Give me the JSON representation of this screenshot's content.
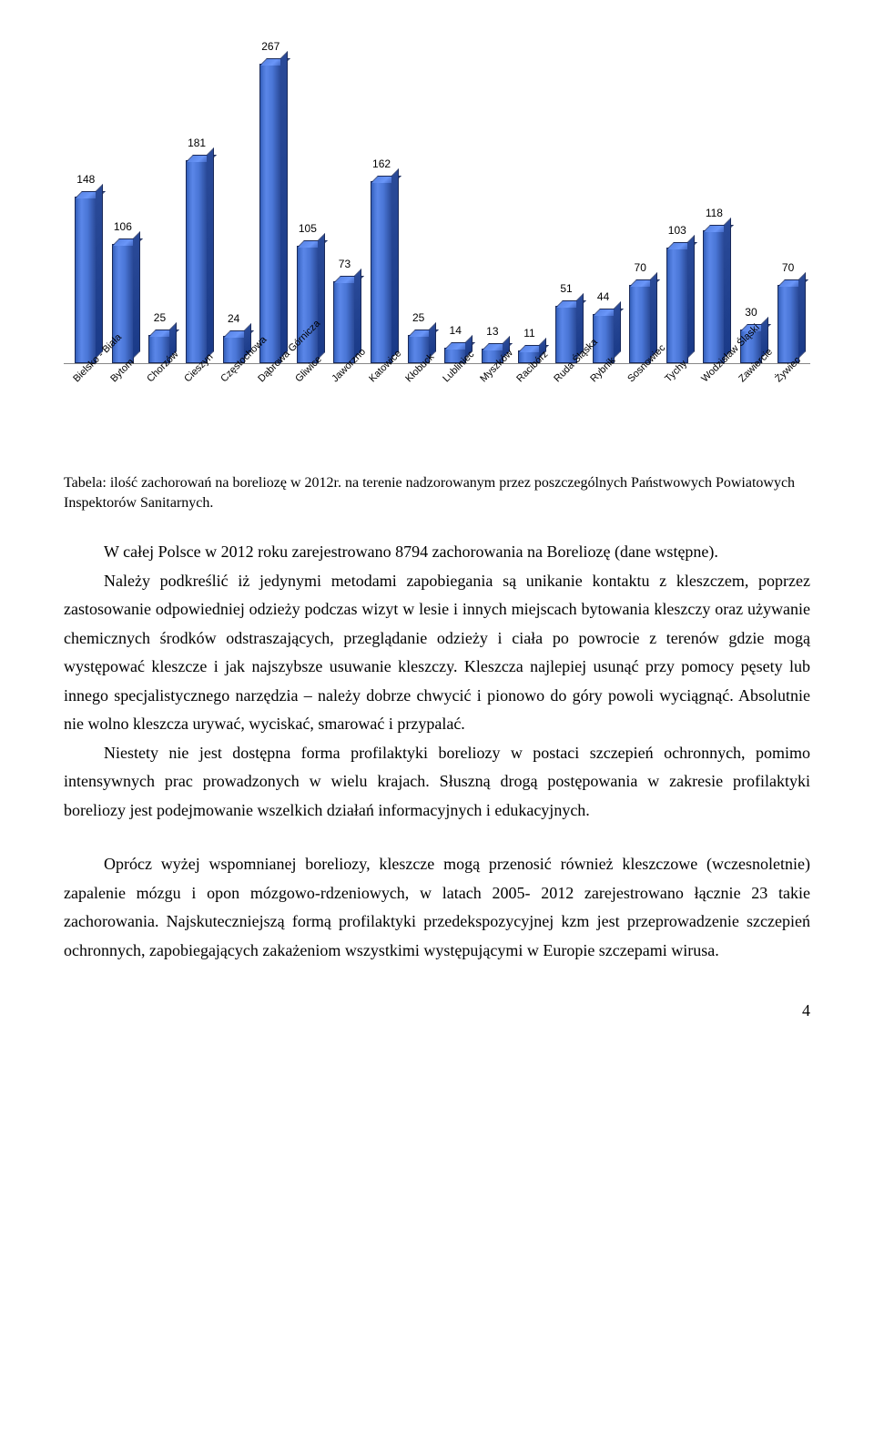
{
  "chart": {
    "type": "bar",
    "max_value": 300,
    "bar_color": "#4a76d6",
    "bar_border": "#1a2a5a",
    "axis_color": "#888888",
    "label_fontsize": 12,
    "xlabel_fontsize": 11,
    "categories": [
      "Bielsko - Biała",
      "Bytom",
      "Chorzów",
      "Cieszyn",
      "Częstochowa",
      "Dąbrowa Górnicza",
      "Gliwice",
      "Jaworzno",
      "Katowice",
      "Kłobuck",
      "Lubliniec",
      "Myszków",
      "Racibórz",
      "Ruda Śląska",
      "Rybnik",
      "Sosnowiec",
      "Tychy",
      "Wodzisław Śląski",
      "Zawiercie",
      "Żywiec"
    ],
    "values": [
      148,
      106,
      25,
      181,
      24,
      267,
      105,
      73,
      162,
      25,
      14,
      13,
      11,
      51,
      44,
      70,
      103,
      118,
      30,
      70
    ]
  },
  "caption_line1": "Tabela: ilość zachorowań na boreliozę w 2012r. na terenie nadzorowanym przez poszczególnych Państwowych Powiatowych Inspektorów Sanitarnych.",
  "p1a": "W całej Polsce w 2012 roku zarejestrowano 8794 zachorowania na Boreliozę (dane wstępne).",
  "p2": "Należy podkreślić iż jedynymi metodami zapobiegania są unikanie kontaktu z kleszczem, poprzez zastosowanie odpowiedniej odzieży podczas wizyt w lesie i innych miejscach bytowania kleszczy oraz używanie chemicznych środków odstraszających, przeglądanie odzieży i ciała po powrocie z terenów gdzie mogą występować kleszcze i jak najszybsze usuwanie kleszczy. Kleszcza najlepiej usunąć przy pomocy pęsety lub innego specjalistycznego narzędzia – należy dobrze chwycić i pionowo do góry powoli wyciągnąć. Absolutnie nie wolno kleszcza urywać, wyciskać, smarować i przypalać.",
  "p3": "Niestety nie jest dostępna forma profilaktyki boreliozy w postaci szczepień ochronnych,  pomimo intensywnych prac prowadzonych w wielu krajach. Słuszną drogą postępowania w zakresie profilaktyki boreliozy jest podejmowanie wszelkich działań informacyjnych i edukacyjnych.",
  "p4": "Oprócz wyżej wspomnianej boreliozy, kleszcze mogą przenosić również kleszczowe (wczesnoletnie) zapalenie mózgu i opon mózgowo-rdzeniowych, w latach 2005- 2012 zarejestrowano łącznie 23 takie zachorowania. Najskuteczniejszą formą profilaktyki przedekspozycyjnej kzm jest przeprowadzenie szczepień ochronnych, zapobiegających zakażeniom wszystkimi występującymi w Europie szczepami wirusa.",
  "page_number": "4"
}
